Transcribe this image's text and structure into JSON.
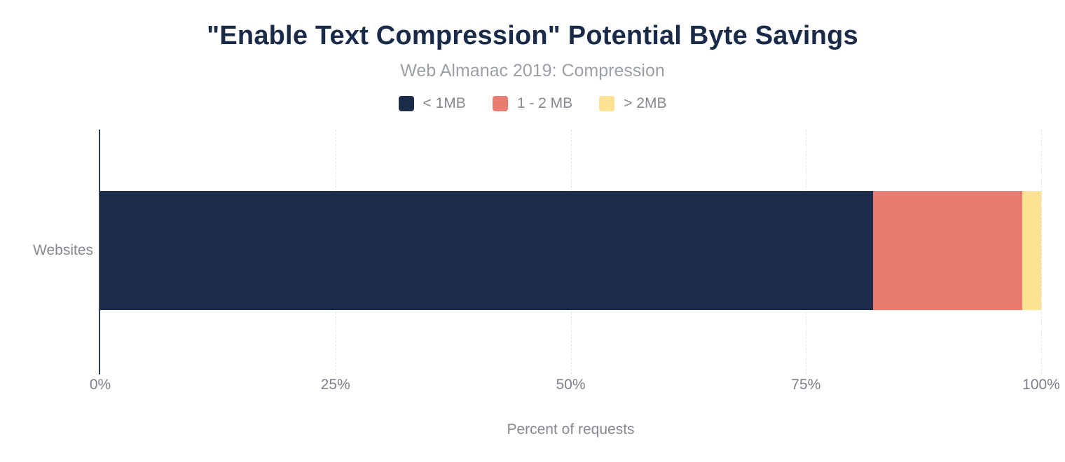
{
  "title": "\"Enable Text Compression\" Potential Byte Savings",
  "subtitle": "Web Almanac 2019: Compression",
  "colors": {
    "title": "#1a2b49",
    "muted_text": "#85888f",
    "axis_line": "#333f54",
    "gridline": "#e4e4e7"
  },
  "chart_data": {
    "type": "bar",
    "orientation": "horizontal",
    "stacked": true,
    "title": "\"Enable Text Compression\" Potential Byte Savings",
    "subtitle": "Web Almanac 2019: Compression",
    "categories": [
      "Websites"
    ],
    "series": [
      {
        "name": "< 1MB",
        "color": "#1b2b49",
        "values": [
          82.1
        ]
      },
      {
        "name": "1 - 2 MB",
        "color": "#e87c70",
        "values": [
          15.9
        ]
      },
      {
        "name": "> 2MB",
        "color": "#fde293",
        "values": [
          2.0
        ]
      }
    ],
    "xlabel": "Percent of requests",
    "ylabel": "",
    "xlim": [
      0,
      100
    ],
    "x_ticks": [
      "0%",
      "25%",
      "50%",
      "75%",
      "100%"
    ],
    "grid": "vertical-dashed",
    "legend_position": "top"
  }
}
